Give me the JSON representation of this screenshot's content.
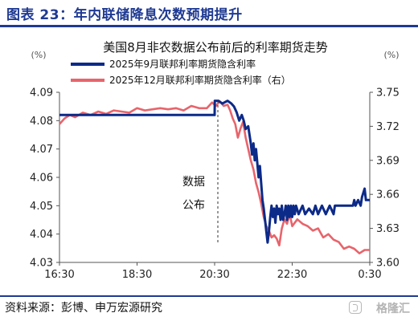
{
  "figure_title": "图表 23：年内联储降息次数预期提升",
  "source": "资料来源：彭博、申万宏源研究",
  "watermark": "格隆汇",
  "colors": {
    "title": "#1f3a93",
    "series_blue": "#0c2a88",
    "series_red": "#e8646b",
    "axis": "#555555"
  },
  "chart_data": {
    "type": "line",
    "title": "美国8月非农数据公布前后的利率期货走势",
    "left_unit": "(%)",
    "right_unit": "(%)",
    "x_ticks": [
      "16:30",
      "18:30",
      "20:30",
      "22:30",
      "0:30"
    ],
    "y_left": {
      "min": 4.03,
      "max": 4.09,
      "ticks": [
        4.03,
        4.04,
        4.05,
        4.06,
        4.07,
        4.08,
        4.09
      ]
    },
    "y_right": {
      "min": 3.6,
      "max": 3.75,
      "ticks": [
        3.6,
        3.63,
        3.66,
        3.69,
        3.72,
        3.75
      ]
    },
    "annotation": {
      "x": "20:30",
      "label_line1": "数据",
      "label_line2": "公布"
    },
    "series": [
      {
        "name": "2025年9月联邦利率期货隐含利率",
        "axis": "left",
        "color": "#0c2a88",
        "x": [
          0,
          120,
          120.1,
          123,
          126,
          130,
          133,
          135,
          137,
          139,
          141,
          142.5,
          144,
          146,
          147,
          148,
          149,
          150,
          151,
          152,
          153,
          154,
          155,
          156,
          157,
          158,
          159,
          160,
          161,
          162,
          163,
          164,
          165,
          166,
          167,
          168,
          169,
          170,
          171,
          172,
          173,
          174,
          175,
          176,
          177,
          178,
          179,
          180,
          181,
          182,
          183,
          185,
          188,
          190,
          193,
          196,
          198,
          200,
          203,
          206,
          209,
          212,
          213,
          215,
          218,
          221,
          224,
          227,
          228,
          229,
          231,
          233,
          234,
          236,
          237,
          240
        ],
        "y": [
          4.082,
          4.082,
          4.087,
          4.087,
          4.086,
          4.087,
          4.086,
          4.085,
          4.083,
          4.08,
          4.082,
          4.08,
          4.077,
          4.078,
          4.075,
          4.072,
          4.068,
          4.072,
          4.066,
          4.07,
          4.065,
          4.06,
          4.064,
          4.058,
          4.052,
          4.049,
          4.045,
          4.041,
          4.037,
          4.041,
          4.046,
          4.05,
          4.046,
          4.049,
          4.044,
          4.05,
          4.047,
          4.049,
          4.045,
          4.05,
          4.045,
          4.047,
          4.05,
          4.045,
          4.05,
          4.046,
          4.05,
          4.046,
          4.05,
          4.047,
          4.05,
          4.047,
          4.05,
          4.047,
          4.049,
          4.047,
          4.05,
          4.047,
          4.05,
          4.047,
          4.05,
          4.047,
          4.05,
          4.05,
          4.05,
          4.05,
          4.05,
          4.05,
          4.052,
          4.05,
          4.052,
          4.05,
          4.053,
          4.056,
          4.052,
          4.052
        ]
      },
      {
        "name": "2025年12月联邦利率期货隐含利率（右）",
        "axis": "right",
        "color": "#e8646b",
        "x": [
          0,
          4,
          8,
          12,
          18,
          24,
          30,
          36,
          42,
          48,
          54,
          60,
          66,
          72,
          78,
          84,
          90,
          96,
          102,
          108,
          114,
          118,
          121,
          124,
          127,
          130,
          132,
          134,
          136,
          138,
          140,
          142,
          144,
          146,
          148,
          150,
          152,
          154,
          156,
          158,
          160,
          162,
          164,
          166,
          168,
          170,
          172,
          174,
          176,
          178,
          180,
          184,
          188,
          192,
          196,
          200,
          204,
          208,
          212,
          216,
          220,
          224,
          228,
          232,
          236,
          240
        ],
        "y": [
          3.722,
          3.727,
          3.73,
          3.728,
          3.732,
          3.73,
          3.733,
          3.731,
          3.734,
          3.733,
          3.732,
          3.736,
          3.734,
          3.735,
          3.736,
          3.735,
          3.736,
          3.734,
          3.738,
          3.736,
          3.736,
          3.741,
          3.738,
          3.742,
          3.738,
          3.739,
          3.734,
          3.727,
          3.722,
          3.71,
          3.718,
          3.724,
          3.71,
          3.7,
          3.69,
          3.682,
          3.67,
          3.662,
          3.652,
          3.64,
          3.632,
          3.628,
          3.622,
          3.624,
          3.621,
          3.615,
          3.63,
          3.638,
          3.634,
          3.643,
          3.632,
          3.638,
          3.634,
          3.632,
          3.628,
          3.63,
          3.622,
          3.625,
          3.62,
          3.618,
          3.612,
          3.614,
          3.612,
          3.608,
          3.611,
          3.611
        ]
      }
    ]
  }
}
